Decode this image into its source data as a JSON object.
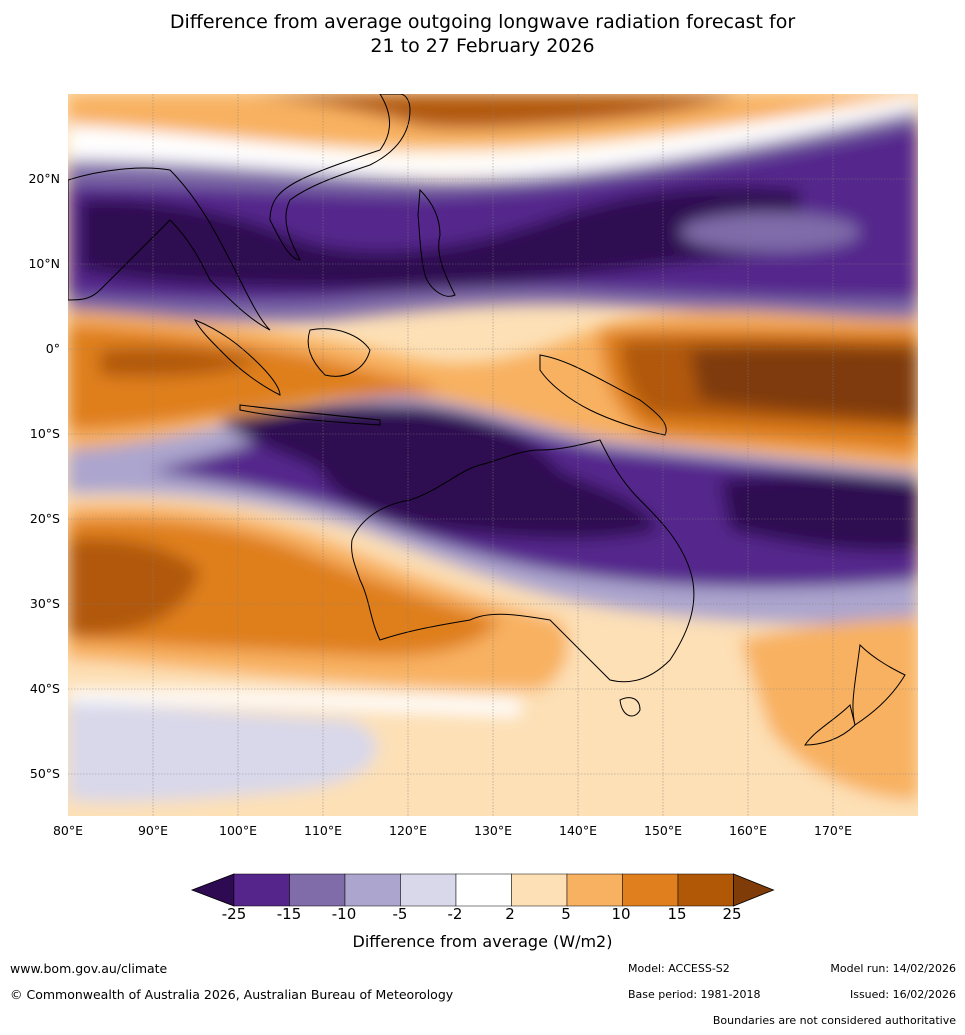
{
  "title": {
    "line1": "Difference from average outgoing longwave radiation forecast for",
    "line2": "21 to 27 February 2026"
  },
  "map": {
    "lon_range": [
      80,
      180
    ],
    "lat_range": [
      -55,
      30
    ],
    "lat_labels": [
      "20°N",
      "10°N",
      "0°",
      "10°S",
      "20°S",
      "30°S",
      "40°S",
      "50°S"
    ],
    "lon_labels": [
      "80°E",
      "90°E",
      "100°E",
      "110°E",
      "120°E",
      "130°E",
      "140°E",
      "150°E",
      "160°E",
      "170°E"
    ]
  },
  "colorbar": {
    "ticks": [
      "-25",
      "-15",
      "-10",
      "-5",
      "-2",
      "2",
      "5",
      "10",
      "15",
      "25"
    ],
    "colors": [
      "#2d0a51",
      "#55258c",
      "#7f6ca9",
      "#aca5ce",
      "#d8d8ea",
      "#ffffff",
      "#fde0b6",
      "#f8b160",
      "#df7f1d",
      "#b15807",
      "#7f3b08"
    ],
    "label": "Difference from average (W/m2)"
  },
  "footer": {
    "website": "www.bom.gov.au/climate",
    "copyright": "© Commonwealth of Australia 2026, Australian Bureau of Meteorology",
    "model": "Model: ACCESS-S2",
    "base_period": "Base period: 1981-2018",
    "model_run": "Model run: 14/02/2026",
    "issued": "Issued: 16/02/2026",
    "disclaimer": "Boundaries are not considered authoritative"
  }
}
